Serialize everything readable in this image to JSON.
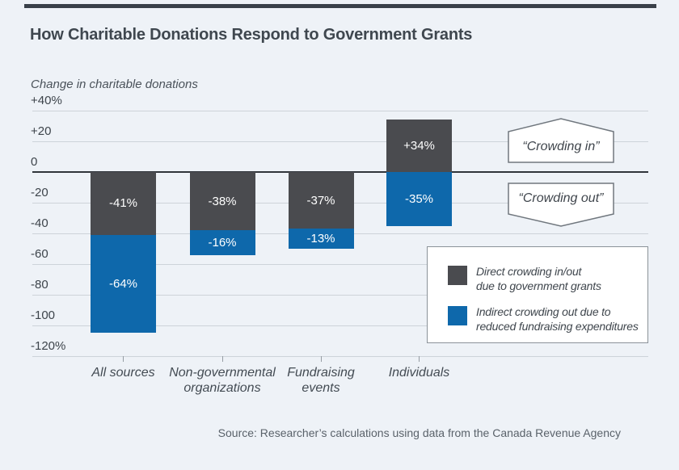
{
  "page": {
    "title": "How Charitable Donations Respond to Government Grants",
    "source": "Source: Researcher’s calculations using data from the Canada Revenue Agency"
  },
  "colors": {
    "background": "#eef2f7",
    "direct": "#4a4b4f",
    "indirect": "#0e68ab",
    "gridline": "#cdd3d9",
    "zero_line": "#30353b",
    "top_rule": "#394049"
  },
  "chart_data": {
    "type": "bar",
    "stacked": true,
    "title": "How Charitable Donations Respond to Government Grants",
    "ylabel": "Change in charitable donations",
    "unit": "%",
    "ylim": [
      -120,
      40
    ],
    "grid": true,
    "legend_position": "bottom-right",
    "y_ticks": [
      {
        "value": 40,
        "label": "+40%"
      },
      {
        "value": 20,
        "label": "+20"
      },
      {
        "value": 0,
        "label": "0"
      },
      {
        "value": -20,
        "label": "-20"
      },
      {
        "value": -40,
        "label": "-40"
      },
      {
        "value": -60,
        "label": "-60"
      },
      {
        "value": -80,
        "label": "-80"
      },
      {
        "value": -100,
        "label": "-100"
      },
      {
        "value": -120,
        "label": "-120%"
      }
    ],
    "categories": [
      "All sources",
      "Non-governmental organizations",
      "Fundraising events",
      "Individuals"
    ],
    "category_lines": [
      [
        "All sources"
      ],
      [
        "Non-governmental",
        "organizations"
      ],
      [
        "Fundraising",
        "events"
      ],
      [
        "Individuals"
      ]
    ],
    "series": [
      {
        "name": "Direct crowding in/out due to government grants",
        "values": [
          -41,
          -38,
          -37,
          34
        ],
        "labels": [
          "-41%",
          "-38%",
          "-37%",
          "+34%"
        ]
      },
      {
        "name": "Indirect crowding out due to reduced fundraising expenditures",
        "values": [
          -64,
          -16,
          -13,
          -35
        ],
        "labels": [
          "-64%",
          "-16%",
          "-13%",
          "-35%"
        ]
      }
    ],
    "annotations": [
      {
        "text": "“Crowding in”"
      },
      {
        "text": "“Crowding out”"
      }
    ],
    "legend": [
      {
        "lines": [
          "Direct crowding in/out",
          "due to government grants"
        ]
      },
      {
        "lines": [
          "Indirect crowding out due to",
          "reduced fundraising expenditures"
        ]
      }
    ]
  }
}
